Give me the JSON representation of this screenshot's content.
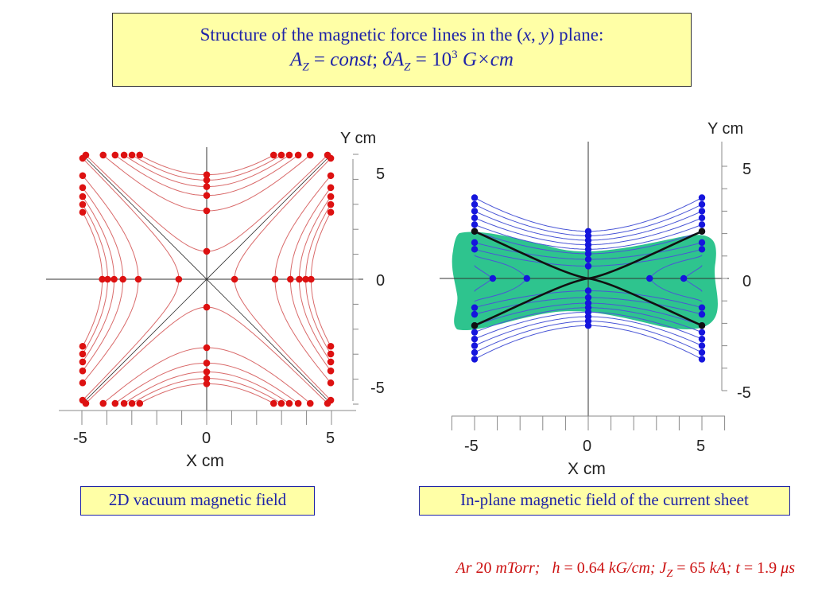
{
  "title": {
    "line1_prefix": "Structure of the magnetic force lines in the (",
    "line1_x": "x",
    "line1_sep": ", ",
    "line1_y": "y",
    "line1_suffix": ") plane:",
    "line2_a": "A",
    "line2_sub": "Z",
    "line2_eq": " = ",
    "line2_const": "const",
    "line2_semi": "; ",
    "line2_delta": "δ",
    "line2_a2": "A",
    "line2_sub2": "Z",
    "line2_eq2": " = 10",
    "line2_exp": "3",
    "line2_units": " G×cm"
  },
  "left_panel": {
    "caption": "2D vacuum magnetic field",
    "x_axis_label": "X  cm",
    "y_axis_label": "Y cm",
    "x_ticks": [
      "-5",
      "0",
      "5"
    ],
    "y_ticks": [
      "5",
      "0",
      "-5"
    ],
    "colors": {
      "lines": "#d96a6a",
      "dots": "#dd1111",
      "axes": "#333333"
    }
  },
  "right_panel": {
    "caption": "In-plane magnetic field of the current sheet",
    "x_axis_label": "X  cm",
    "y_axis_label": "Y cm",
    "x_ticks": [
      "-5",
      "0",
      "5"
    ],
    "y_ticks": [
      "5",
      "0",
      "-5"
    ],
    "colors": {
      "lines": "#4a56d6",
      "dots": "#1515dd",
      "sheet": "#2ec48e",
      "separatrix": "#111111"
    }
  },
  "params": {
    "gas": "Ar",
    "pressure": " 20 ",
    "pressure_unit": "mTorr;",
    "h_label": "   h",
    "h_value": " = 0.64 ",
    "h_unit": "kG/cm;",
    "j_label": " J",
    "j_sub": "Z",
    "j_value": " = 65 ",
    "j_unit": "kA;",
    "t_label": " t",
    "t_value": " = 1.9 ",
    "t_unit": "μs"
  }
}
